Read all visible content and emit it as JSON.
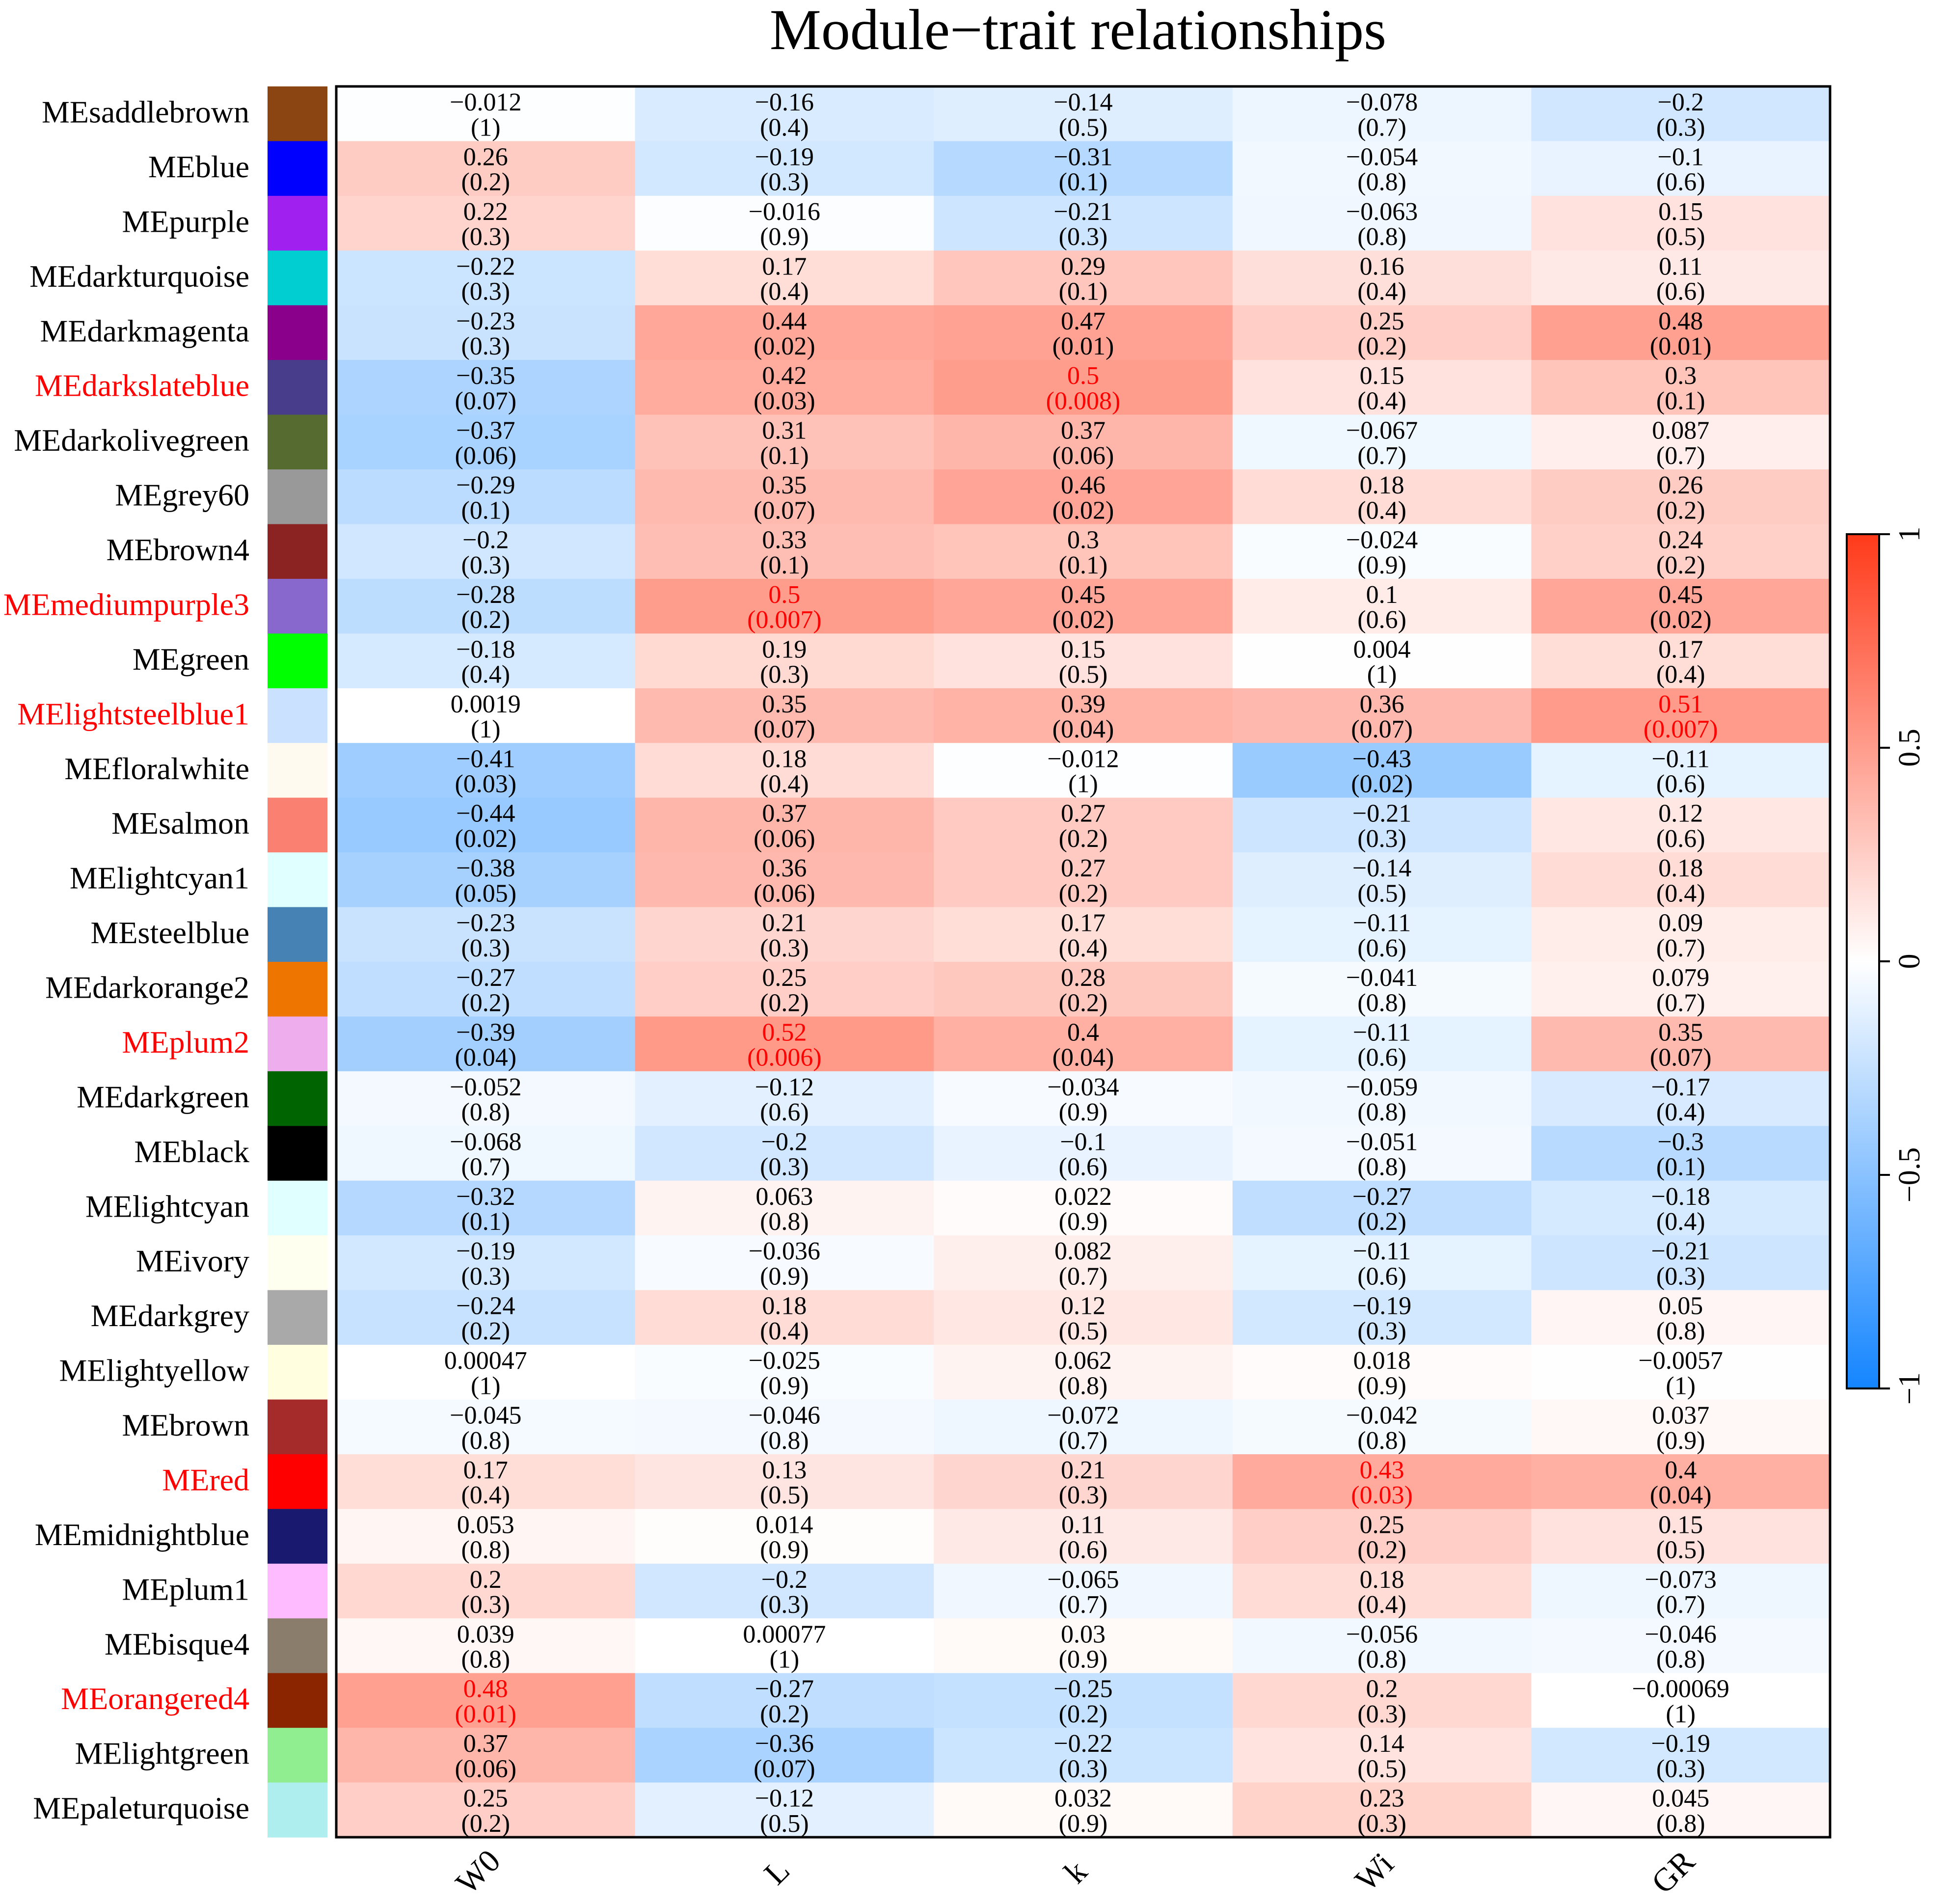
{
  "chart_data": {
    "type": "heatmap",
    "title": "Module−trait relationships",
    "columns": [
      "W0",
      "L",
      "k",
      "Wi",
      "GR"
    ],
    "colorbar": {
      "min": -1,
      "max": 1,
      "ticks": [
        "−1",
        "−0.5",
        "0",
        "0.5",
        "1"
      ],
      "tick_values": [
        -1,
        -0.5,
        0,
        0.5,
        1
      ]
    },
    "highlight_color": "#ff0000",
    "rows": [
      {
        "name": "MEsaddlebrown",
        "swatch": "#8B4513",
        "highlighted": false,
        "cells": [
          {
            "r": "−0.012",
            "p": "(1)"
          },
          {
            "r": "−0.16",
            "p": "(0.4)"
          },
          {
            "r": "−0.14",
            "p": "(0.5)"
          },
          {
            "r": "−0.078",
            "p": "(0.7)"
          },
          {
            "r": "−0.2",
            "p": "(0.3)"
          }
        ]
      },
      {
        "name": "MEblue",
        "swatch": "#0000FF",
        "highlighted": false,
        "cells": [
          {
            "r": "0.26",
            "p": "(0.2)"
          },
          {
            "r": "−0.19",
            "p": "(0.3)"
          },
          {
            "r": "−0.31",
            "p": "(0.1)"
          },
          {
            "r": "−0.054",
            "p": "(0.8)"
          },
          {
            "r": "−0.1",
            "p": "(0.6)"
          }
        ]
      },
      {
        "name": "MEpurple",
        "swatch": "#A020F0",
        "highlighted": false,
        "cells": [
          {
            "r": "0.22",
            "p": "(0.3)"
          },
          {
            "r": "−0.016",
            "p": "(0.9)"
          },
          {
            "r": "−0.21",
            "p": "(0.3)"
          },
          {
            "r": "−0.063",
            "p": "(0.8)"
          },
          {
            "r": "0.15",
            "p": "(0.5)"
          }
        ]
      },
      {
        "name": "MEdarkturquoise",
        "swatch": "#00CED1",
        "highlighted": false,
        "cells": [
          {
            "r": "−0.22",
            "p": "(0.3)"
          },
          {
            "r": "0.17",
            "p": "(0.4)"
          },
          {
            "r": "0.29",
            "p": "(0.1)"
          },
          {
            "r": "0.16",
            "p": "(0.4)"
          },
          {
            "r": "0.11",
            "p": "(0.6)"
          }
        ]
      },
      {
        "name": "MEdarkmagenta",
        "swatch": "#8B008B",
        "highlighted": false,
        "cells": [
          {
            "r": "−0.23",
            "p": "(0.3)"
          },
          {
            "r": "0.44",
            "p": "(0.02)"
          },
          {
            "r": "0.47",
            "p": "(0.01)"
          },
          {
            "r": "0.25",
            "p": "(0.2)"
          },
          {
            "r": "0.48",
            "p": "(0.01)"
          }
        ]
      },
      {
        "name": "MEdarkslateblue",
        "swatch": "#483D8B",
        "highlighted": true,
        "cells": [
          {
            "r": "−0.35",
            "p": "(0.07)"
          },
          {
            "r": "0.42",
            "p": "(0.03)"
          },
          {
            "r": "0.5",
            "p": "(0.008)",
            "hl": true
          },
          {
            "r": "0.15",
            "p": "(0.4)"
          },
          {
            "r": "0.3",
            "p": "(0.1)"
          }
        ]
      },
      {
        "name": "MEdarkolivegreen",
        "swatch": "#556B2F",
        "highlighted": false,
        "cells": [
          {
            "r": "−0.37",
            "p": "(0.06)"
          },
          {
            "r": "0.31",
            "p": "(0.1)"
          },
          {
            "r": "0.37",
            "p": "(0.06)"
          },
          {
            "r": "−0.067",
            "p": "(0.7)"
          },
          {
            "r": "0.087",
            "p": "(0.7)"
          }
        ]
      },
      {
        "name": "MEgrey60",
        "swatch": "#999999",
        "highlighted": false,
        "cells": [
          {
            "r": "−0.29",
            "p": "(0.1)"
          },
          {
            "r": "0.35",
            "p": "(0.07)"
          },
          {
            "r": "0.46",
            "p": "(0.02)"
          },
          {
            "r": "0.18",
            "p": "(0.4)"
          },
          {
            "r": "0.26",
            "p": "(0.2)"
          }
        ]
      },
      {
        "name": "MEbrown4",
        "swatch": "#8B2323",
        "highlighted": false,
        "cells": [
          {
            "r": "−0.2",
            "p": "(0.3)"
          },
          {
            "r": "0.33",
            "p": "(0.1)"
          },
          {
            "r": "0.3",
            "p": "(0.1)"
          },
          {
            "r": "−0.024",
            "p": "(0.9)"
          },
          {
            "r": "0.24",
            "p": "(0.2)"
          }
        ]
      },
      {
        "name": "MEmediumpurple3",
        "swatch": "#8968CD",
        "highlighted": true,
        "cells": [
          {
            "r": "−0.28",
            "p": "(0.2)"
          },
          {
            "r": "0.5",
            "p": "(0.007)",
            "hl": true
          },
          {
            "r": "0.45",
            "p": "(0.02)"
          },
          {
            "r": "0.1",
            "p": "(0.6)"
          },
          {
            "r": "0.45",
            "p": "(0.02)"
          }
        ]
      },
      {
        "name": "MEgreen",
        "swatch": "#00FF00",
        "highlighted": false,
        "cells": [
          {
            "r": "−0.18",
            "p": "(0.4)"
          },
          {
            "r": "0.19",
            "p": "(0.3)"
          },
          {
            "r": "0.15",
            "p": "(0.5)"
          },
          {
            "r": "0.004",
            "p": "(1)"
          },
          {
            "r": "0.17",
            "p": "(0.4)"
          }
        ]
      },
      {
        "name": "MElightsteelblue1",
        "swatch": "#CAE1FF",
        "highlighted": true,
        "cells": [
          {
            "r": "0.0019",
            "p": "(1)"
          },
          {
            "r": "0.35",
            "p": "(0.07)"
          },
          {
            "r": "0.39",
            "p": "(0.04)"
          },
          {
            "r": "0.36",
            "p": "(0.07)"
          },
          {
            "r": "0.51",
            "p": "(0.007)",
            "hl": true
          }
        ]
      },
      {
        "name": "MEfloralwhite",
        "swatch": "#FFFAF0",
        "highlighted": false,
        "cells": [
          {
            "r": "−0.41",
            "p": "(0.03)"
          },
          {
            "r": "0.18",
            "p": "(0.4)"
          },
          {
            "r": "−0.012",
            "p": "(1)"
          },
          {
            "r": "−0.43",
            "p": "(0.02)"
          },
          {
            "r": "−0.11",
            "p": "(0.6)"
          }
        ]
      },
      {
        "name": "MEsalmon",
        "swatch": "#FA8072",
        "highlighted": false,
        "cells": [
          {
            "r": "−0.44",
            "p": "(0.02)"
          },
          {
            "r": "0.37",
            "p": "(0.06)"
          },
          {
            "r": "0.27",
            "p": "(0.2)"
          },
          {
            "r": "−0.21",
            "p": "(0.3)"
          },
          {
            "r": "0.12",
            "p": "(0.6)"
          }
        ]
      },
      {
        "name": "MElightcyan1",
        "swatch": "#E0FFFF",
        "highlighted": false,
        "cells": [
          {
            "r": "−0.38",
            "p": "(0.05)"
          },
          {
            "r": "0.36",
            "p": "(0.06)"
          },
          {
            "r": "0.27",
            "p": "(0.2)"
          },
          {
            "r": "−0.14",
            "p": "(0.5)"
          },
          {
            "r": "0.18",
            "p": "(0.4)"
          }
        ]
      },
      {
        "name": "MEsteelblue",
        "swatch": "#4682B4",
        "highlighted": false,
        "cells": [
          {
            "r": "−0.23",
            "p": "(0.3)"
          },
          {
            "r": "0.21",
            "p": "(0.3)"
          },
          {
            "r": "0.17",
            "p": "(0.4)"
          },
          {
            "r": "−0.11",
            "p": "(0.6)"
          },
          {
            "r": "0.09",
            "p": "(0.7)"
          }
        ]
      },
      {
        "name": "MEdarkorange2",
        "swatch": "#EE7600",
        "highlighted": false,
        "cells": [
          {
            "r": "−0.27",
            "p": "(0.2)"
          },
          {
            "r": "0.25",
            "p": "(0.2)"
          },
          {
            "r": "0.28",
            "p": "(0.2)"
          },
          {
            "r": "−0.041",
            "p": "(0.8)"
          },
          {
            "r": "0.079",
            "p": "(0.7)"
          }
        ]
      },
      {
        "name": "MEplum2",
        "swatch": "#EEAEEE",
        "highlighted": true,
        "cells": [
          {
            "r": "−0.39",
            "p": "(0.04)"
          },
          {
            "r": "0.52",
            "p": "(0.006)",
            "hl": true
          },
          {
            "r": "0.4",
            "p": "(0.04)"
          },
          {
            "r": "−0.11",
            "p": "(0.6)"
          },
          {
            "r": "0.35",
            "p": "(0.07)"
          }
        ]
      },
      {
        "name": "MEdarkgreen",
        "swatch": "#006400",
        "highlighted": false,
        "cells": [
          {
            "r": "−0.052",
            "p": "(0.8)"
          },
          {
            "r": "−0.12",
            "p": "(0.6)"
          },
          {
            "r": "−0.034",
            "p": "(0.9)"
          },
          {
            "r": "−0.059",
            "p": "(0.8)"
          },
          {
            "r": "−0.17",
            "p": "(0.4)"
          }
        ]
      },
      {
        "name": "MEblack",
        "swatch": "#000000",
        "highlighted": false,
        "cells": [
          {
            "r": "−0.068",
            "p": "(0.7)"
          },
          {
            "r": "−0.2",
            "p": "(0.3)"
          },
          {
            "r": "−0.1",
            "p": "(0.6)"
          },
          {
            "r": "−0.051",
            "p": "(0.8)"
          },
          {
            "r": "−0.3",
            "p": "(0.1)"
          }
        ]
      },
      {
        "name": "MElightcyan",
        "swatch": "#E0FFFF",
        "highlighted": false,
        "cells": [
          {
            "r": "−0.32",
            "p": "(0.1)"
          },
          {
            "r": "0.063",
            "p": "(0.8)"
          },
          {
            "r": "0.022",
            "p": "(0.9)"
          },
          {
            "r": "−0.27",
            "p": "(0.2)"
          },
          {
            "r": "−0.18",
            "p": "(0.4)"
          }
        ]
      },
      {
        "name": "MEivory",
        "swatch": "#FFFFF0",
        "highlighted": false,
        "cells": [
          {
            "r": "−0.19",
            "p": "(0.3)"
          },
          {
            "r": "−0.036",
            "p": "(0.9)"
          },
          {
            "r": "0.082",
            "p": "(0.7)"
          },
          {
            "r": "−0.11",
            "p": "(0.6)"
          },
          {
            "r": "−0.21",
            "p": "(0.3)"
          }
        ]
      },
      {
        "name": "MEdarkgrey",
        "swatch": "#A9A9A9",
        "highlighted": false,
        "cells": [
          {
            "r": "−0.24",
            "p": "(0.2)"
          },
          {
            "r": "0.18",
            "p": "(0.4)"
          },
          {
            "r": "0.12",
            "p": "(0.5)"
          },
          {
            "r": "−0.19",
            "p": "(0.3)"
          },
          {
            "r": "0.05",
            "p": "(0.8)"
          }
        ]
      },
      {
        "name": "MElightyellow",
        "swatch": "#FFFFE0",
        "highlighted": false,
        "cells": [
          {
            "r": "0.00047",
            "p": "(1)"
          },
          {
            "r": "−0.025",
            "p": "(0.9)"
          },
          {
            "r": "0.062",
            "p": "(0.8)"
          },
          {
            "r": "0.018",
            "p": "(0.9)"
          },
          {
            "r": "−0.0057",
            "p": "(1)"
          }
        ]
      },
      {
        "name": "MEbrown",
        "swatch": "#A52A2A",
        "highlighted": false,
        "cells": [
          {
            "r": "−0.045",
            "p": "(0.8)"
          },
          {
            "r": "−0.046",
            "p": "(0.8)"
          },
          {
            "r": "−0.072",
            "p": "(0.7)"
          },
          {
            "r": "−0.042",
            "p": "(0.8)"
          },
          {
            "r": "0.037",
            "p": "(0.9)"
          }
        ]
      },
      {
        "name": "MEred",
        "swatch": "#FF0000",
        "highlighted": true,
        "cells": [
          {
            "r": "0.17",
            "p": "(0.4)"
          },
          {
            "r": "0.13",
            "p": "(0.5)"
          },
          {
            "r": "0.21",
            "p": "(0.3)"
          },
          {
            "r": "0.43",
            "p": "(0.03)",
            "hl": true
          },
          {
            "r": "0.4",
            "p": "(0.04)"
          }
        ]
      },
      {
        "name": "MEmidnightblue",
        "swatch": "#191970",
        "highlighted": false,
        "cells": [
          {
            "r": "0.053",
            "p": "(0.8)"
          },
          {
            "r": "0.014",
            "p": "(0.9)"
          },
          {
            "r": "0.11",
            "p": "(0.6)"
          },
          {
            "r": "0.25",
            "p": "(0.2)"
          },
          {
            "r": "0.15",
            "p": "(0.5)"
          }
        ]
      },
      {
        "name": "MEplum1",
        "swatch": "#FFBBFF",
        "highlighted": false,
        "cells": [
          {
            "r": "0.2",
            "p": "(0.3)"
          },
          {
            "r": "−0.2",
            "p": "(0.3)"
          },
          {
            "r": "−0.065",
            "p": "(0.7)"
          },
          {
            "r": "0.18",
            "p": "(0.4)"
          },
          {
            "r": "−0.073",
            "p": "(0.7)"
          }
        ]
      },
      {
        "name": "MEbisque4",
        "swatch": "#8B7D6B",
        "highlighted": false,
        "cells": [
          {
            "r": "0.039",
            "p": "(0.8)"
          },
          {
            "r": "0.00077",
            "p": "(1)"
          },
          {
            "r": "0.03",
            "p": "(0.9)"
          },
          {
            "r": "−0.056",
            "p": "(0.8)"
          },
          {
            "r": "−0.046",
            "p": "(0.8)"
          }
        ]
      },
      {
        "name": "MEorangered4",
        "swatch": "#8B2500",
        "highlighted": true,
        "cells": [
          {
            "r": "0.48",
            "p": "(0.01)",
            "hl": true
          },
          {
            "r": "−0.27",
            "p": "(0.2)"
          },
          {
            "r": "−0.25",
            "p": "(0.2)"
          },
          {
            "r": "0.2",
            "p": "(0.3)"
          },
          {
            "r": "−0.00069",
            "p": "(1)"
          }
        ]
      },
      {
        "name": "MElightgreen",
        "swatch": "#90EE90",
        "highlighted": false,
        "cells": [
          {
            "r": "0.37",
            "p": "(0.06)"
          },
          {
            "r": "−0.36",
            "p": "(0.07)"
          },
          {
            "r": "−0.22",
            "p": "(0.3)"
          },
          {
            "r": "0.14",
            "p": "(0.5)"
          },
          {
            "r": "−0.19",
            "p": "(0.3)"
          }
        ]
      },
      {
        "name": "MEpaleturquoise",
        "swatch": "#AEEEEE",
        "highlighted": false,
        "cells": [
          {
            "r": "0.25",
            "p": "(0.2)"
          },
          {
            "r": "−0.12",
            "p": "(0.5)"
          },
          {
            "r": "0.032",
            "p": "(0.9)"
          },
          {
            "r": "0.23",
            "p": "(0.3)"
          },
          {
            "r": "0.045",
            "p": "(0.8)"
          }
        ]
      }
    ]
  }
}
